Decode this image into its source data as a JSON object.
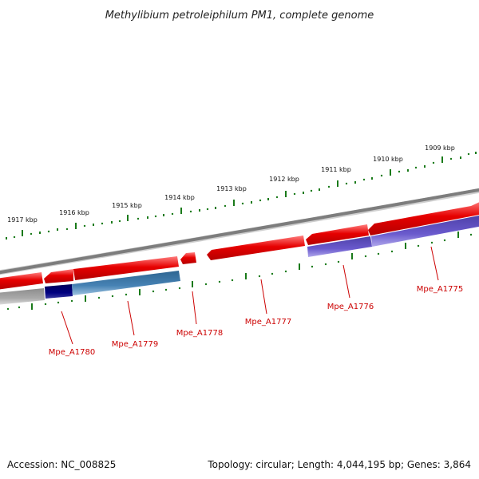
{
  "title": "Methylibium petroleiphilum PM1, complete genome",
  "footer": {
    "accession": "Accession: NC_008825",
    "summary": "Topology: circular; Length: 4,044,195 bp; Genes: 3,864"
  },
  "scale_ticks": [
    "1917 kbp",
    "1916 kbp",
    "1915 kbp",
    "1914 kbp",
    "1913 kbp",
    "1912 kbp",
    "1911 kbp",
    "1910 kbp",
    "1909 kbp"
  ],
  "colors": {
    "backbone": "#808080",
    "gene_forward": "#e60000",
    "tick_marks": "#1a7a1a",
    "label": "#cc0000",
    "cds_steelblue": "#4682b4",
    "cds_navy": "#000080",
    "cds_slateblue": "#6a5acd",
    "cds_gray": "#aaaaaa"
  },
  "genes": [
    {
      "label": "Mpe_A1780",
      "cds_color": "cds_navy"
    },
    {
      "label": "Mpe_A1779",
      "cds_color": "cds_steelblue"
    },
    {
      "label": "Mpe_A1778",
      "cds_color": ""
    },
    {
      "label": "Mpe_A1777",
      "cds_color": ""
    },
    {
      "label": "Mpe_A1776",
      "cds_color": "cds_slateblue"
    },
    {
      "label": "Mpe_A1775",
      "cds_color": "cds_slateblue"
    }
  ]
}
